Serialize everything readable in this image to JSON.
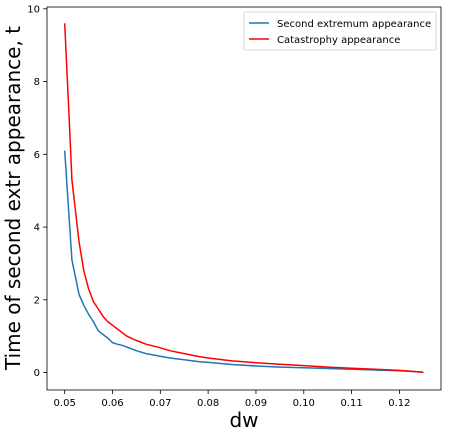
{
  "chart_data": {
    "type": "line",
    "xlabel": "dw",
    "ylabel": "Time of second extr appearance, t",
    "xlim": [
      0.0463,
      0.1287
    ],
    "ylim": [
      -0.48,
      10.05
    ],
    "xticks": [
      0.05,
      0.06,
      0.07,
      0.08,
      0.09,
      0.1,
      0.11,
      0.12
    ],
    "xtick_labels": [
      "0.05",
      "0.06",
      "0.07",
      "0.08",
      "0.09",
      "0.10",
      "0.11",
      "0.12"
    ],
    "yticks": [
      0,
      2,
      4,
      6,
      8,
      10
    ],
    "ytick_labels": [
      "0",
      "2",
      "4",
      "6",
      "8",
      "10"
    ],
    "grid": false,
    "legend_position": "top-right",
    "series": [
      {
        "name": "Second extremum appearance",
        "color": "#1f77b4",
        "x": [
          0.05,
          0.051,
          0.0515,
          0.053,
          0.054,
          0.055,
          0.056,
          0.057,
          0.058,
          0.059,
          0.06,
          0.061,
          0.062,
          0.063,
          0.065,
          0.067,
          0.07,
          0.072,
          0.075,
          0.078,
          0.08,
          0.085,
          0.09,
          0.095,
          0.1,
          0.105,
          0.11,
          0.115,
          0.12,
          0.123,
          0.125
        ],
        "y": [
          6.1,
          4.1,
          3.1,
          2.15,
          1.85,
          1.6,
          1.4,
          1.15,
          1.05,
          0.95,
          0.82,
          0.78,
          0.75,
          0.7,
          0.6,
          0.52,
          0.45,
          0.4,
          0.35,
          0.3,
          0.28,
          0.22,
          0.18,
          0.15,
          0.13,
          0.11,
          0.09,
          0.07,
          0.05,
          0.03,
          0.01
        ]
      },
      {
        "name": "Catastrophy appearance",
        "color": "#ff0000",
        "x": [
          0.05,
          0.051,
          0.0515,
          0.053,
          0.054,
          0.055,
          0.056,
          0.057,
          0.058,
          0.059,
          0.06,
          0.061,
          0.062,
          0.063,
          0.065,
          0.067,
          0.07,
          0.072,
          0.075,
          0.078,
          0.08,
          0.085,
          0.09,
          0.095,
          0.1,
          0.105,
          0.11,
          0.115,
          0.12,
          0.123,
          0.125
        ],
        "y": [
          9.6,
          6.8,
          5.3,
          3.6,
          2.8,
          2.3,
          1.95,
          1.75,
          1.55,
          1.4,
          1.3,
          1.2,
          1.1,
          1.0,
          0.88,
          0.78,
          0.68,
          0.6,
          0.52,
          0.44,
          0.4,
          0.32,
          0.27,
          0.23,
          0.19,
          0.15,
          0.12,
          0.09,
          0.06,
          0.03,
          0.01
        ]
      }
    ]
  }
}
